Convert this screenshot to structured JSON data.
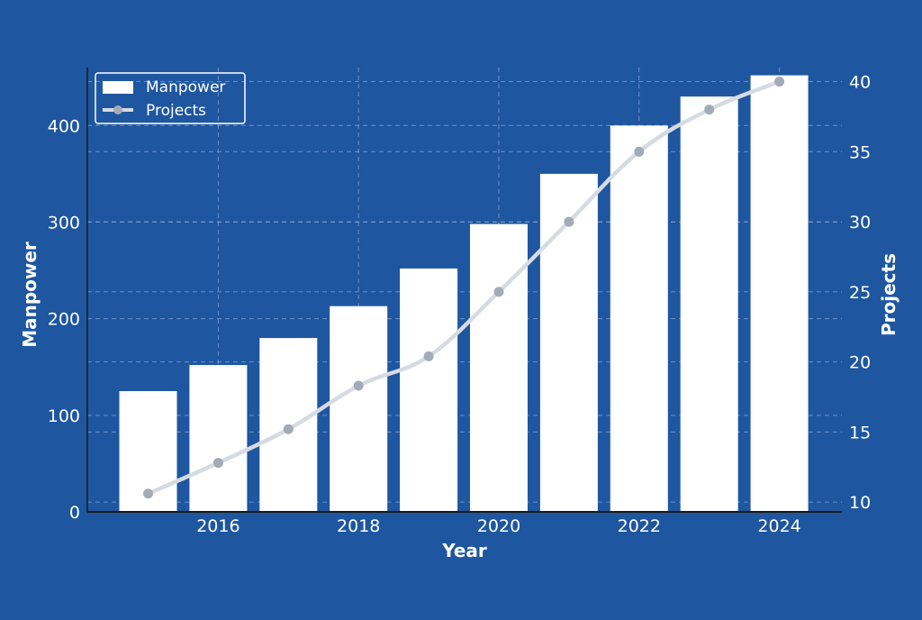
{
  "colors": {
    "background": "#1e56a0",
    "bar": "#ffffff",
    "line": "#d6dbe3",
    "marker": "#a3abb8",
    "grid": "#7d9ccf",
    "axis": "#1a1a1a",
    "text": "#ffffff"
  },
  "chart_data": {
    "type": "bar",
    "title": "",
    "xlabel": "Year",
    "ylabel": "Manpower",
    "y2label": "Projects",
    "x": [
      2015,
      2016,
      2017,
      2018,
      2019,
      2020,
      2021,
      2022,
      2023,
      2024
    ],
    "xticks": [
      "2016",
      "2018",
      "2020",
      "2022",
      "2024"
    ],
    "yticks": [
      "0",
      "100",
      "200",
      "300",
      "400"
    ],
    "y2ticks": [
      "10",
      "15",
      "20",
      "25",
      "30",
      "35",
      "40"
    ],
    "ylim": [
      0,
      460
    ],
    "y2lim": [
      9.3,
      41
    ],
    "grid": true,
    "legend_position": "top-left",
    "series": [
      {
        "name": "Manpower",
        "type": "bar",
        "axis": "left",
        "values": [
          125,
          152,
          180,
          213,
          252,
          298,
          350,
          400,
          430,
          452
        ]
      },
      {
        "name": "Projects",
        "type": "line",
        "axis": "right",
        "values": [
          10.6,
          12.8,
          15.2,
          18.3,
          20.4,
          25.0,
          30.0,
          35.0,
          38.0,
          40.0
        ]
      }
    ]
  }
}
